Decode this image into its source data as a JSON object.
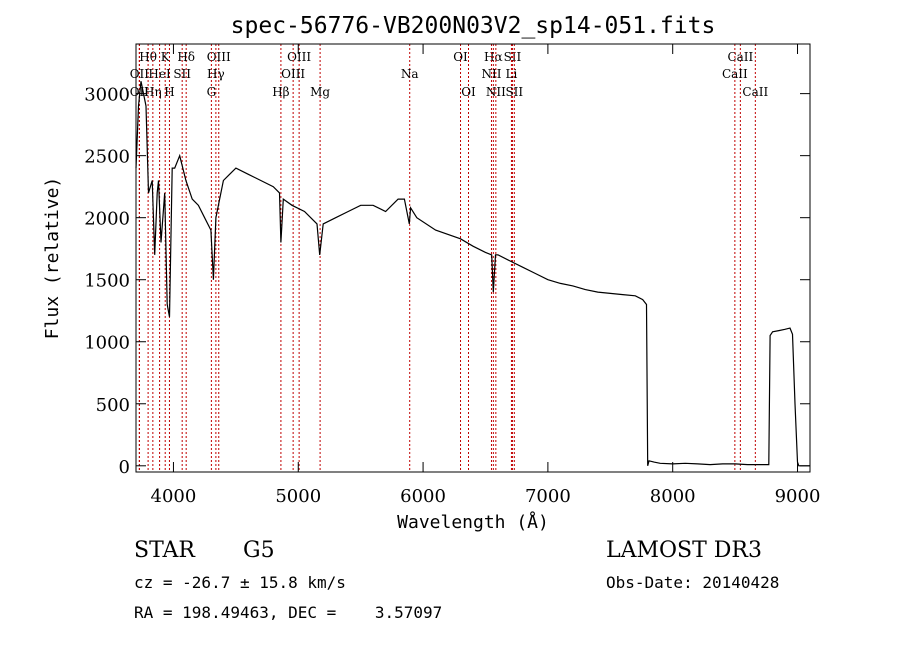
{
  "chart_data": {
    "type": "line",
    "title": "spec-56776-VB200N03V2_sp14-051.fits",
    "xlabel": "Wavelength (Å)",
    "ylabel": "Flux (relative)",
    "xlim": [
      3700,
      9100
    ],
    "ylim": [
      -50,
      3400
    ],
    "xticks": [
      4000,
      5000,
      6000,
      7000,
      8000,
      9000
    ],
    "yticks": [
      0,
      500,
      1000,
      1500,
      2000,
      2500,
      3000
    ],
    "grid": false,
    "series": [
      {
        "name": "spectrum",
        "x": [
          3700,
          3720,
          3740,
          3760,
          3780,
          3800,
          3830,
          3850,
          3870,
          3880,
          3900,
          3930,
          3950,
          3968,
          3990,
          4010,
          4050,
          4100,
          4150,
          4200,
          4250,
          4300,
          4320,
          4340,
          4360,
          4400,
          4450,
          4500,
          4600,
          4700,
          4800,
          4850,
          4861,
          4880,
          4950,
          5050,
          5150,
          5172,
          5200,
          5300,
          5400,
          5500,
          5600,
          5700,
          5800,
          5850,
          5890,
          5900,
          5950,
          6100,
          6300,
          6400,
          6500,
          6550,
          6563,
          6580,
          6600,
          6700,
          6800,
          6900,
          7000,
          7100,
          7200,
          7300,
          7400,
          7500,
          7600,
          7700,
          7760,
          7790,
          7800,
          7810,
          7850,
          7900,
          8000,
          8100,
          8200,
          8300,
          8400,
          8500,
          8600,
          8700,
          8770,
          8780,
          8800,
          8850,
          8900,
          8940,
          8960,
          8980,
          9000,
          9010,
          9100
        ],
        "y": [
          2400,
          2900,
          3100,
          3000,
          2900,
          2200,
          2300,
          1700,
          2200,
          2300,
          1800,
          2200,
          1300,
          1200,
          2400,
          2400,
          2500,
          2300,
          2150,
          2100,
          2000,
          1900,
          1500,
          2000,
          2100,
          2300,
          2350,
          2400,
          2350,
          2300,
          2250,
          2200,
          1800,
          2150,
          2100,
          2050,
          1950,
          1700,
          1950,
          2000,
          2050,
          2100,
          2100,
          2050,
          2150,
          2150,
          1950,
          2080,
          2000,
          1900,
          1830,
          1770,
          1720,
          1700,
          1400,
          1700,
          1700,
          1650,
          1600,
          1550,
          1500,
          1470,
          1450,
          1420,
          1400,
          1390,
          1380,
          1370,
          1340,
          1300,
          0,
          40,
          30,
          20,
          15,
          20,
          15,
          10,
          15,
          15,
          10,
          10,
          10,
          1050,
          1080,
          1090,
          1100,
          1110,
          1060,
          500,
          30,
          0,
          0
        ]
      }
    ],
    "lines": [
      {
        "label": "Hθ",
        "x": 3797,
        "row": 1
      },
      {
        "label": "OII",
        "x": 3727,
        "row": 2
      },
      {
        "label": "OII",
        "x": 3727,
        "row": 3
      },
      {
        "label": "Hη",
        "x": 3835,
        "row": 3
      },
      {
        "label": "HeI",
        "x": 3889,
        "row": 2
      },
      {
        "label": "K",
        "x": 3934,
        "row": 1
      },
      {
        "label": "H",
        "x": 3968,
        "row": 3
      },
      {
        "label": "SII",
        "x": 4070,
        "row": 2
      },
      {
        "label": "Hδ",
        "x": 4102,
        "row": 1
      },
      {
        "label": "OIII",
        "x": 4363,
        "row": 1
      },
      {
        "label": "Hγ",
        "x": 4340,
        "row": 2
      },
      {
        "label": "G",
        "x": 4304,
        "row": 3
      },
      {
        "label": "Hβ",
        "x": 4861,
        "row": 3
      },
      {
        "label": "OIII",
        "x": 5007,
        "row": 1
      },
      {
        "label": "OIII",
        "x": 4959,
        "row": 2
      },
      {
        "label": "Mg",
        "x": 5175,
        "row": 3
      },
      {
        "label": "Na",
        "x": 5893,
        "row": 2
      },
      {
        "label": "OI",
        "x": 6300,
        "row": 1
      },
      {
        "label": "OI",
        "x": 6364,
        "row": 3
      },
      {
        "label": "Hα",
        "x": 6563,
        "row": 1
      },
      {
        "label": "NII",
        "x": 6548,
        "row": 2
      },
      {
        "label": "NII",
        "x": 6583,
        "row": 3
      },
      {
        "label": "SII",
        "x": 6716,
        "row": 1
      },
      {
        "label": "Li",
        "x": 6708,
        "row": 2
      },
      {
        "label": "SII",
        "x": 6731,
        "row": 3
      },
      {
        "label": "CaII",
        "x": 8542,
        "row": 1
      },
      {
        "label": "CaII",
        "x": 8498,
        "row": 2
      },
      {
        "label": "CaII",
        "x": 8662,
        "row": 3
      }
    ]
  },
  "info": {
    "class": "STAR",
    "subclass": "G5",
    "survey": "LAMOST DR3",
    "cz": "cz = -26.7 ± 15.8 km/s",
    "obs_date": "Obs-Date: 20140428",
    "coords": "RA = 198.49463, DEC =    3.57097"
  }
}
